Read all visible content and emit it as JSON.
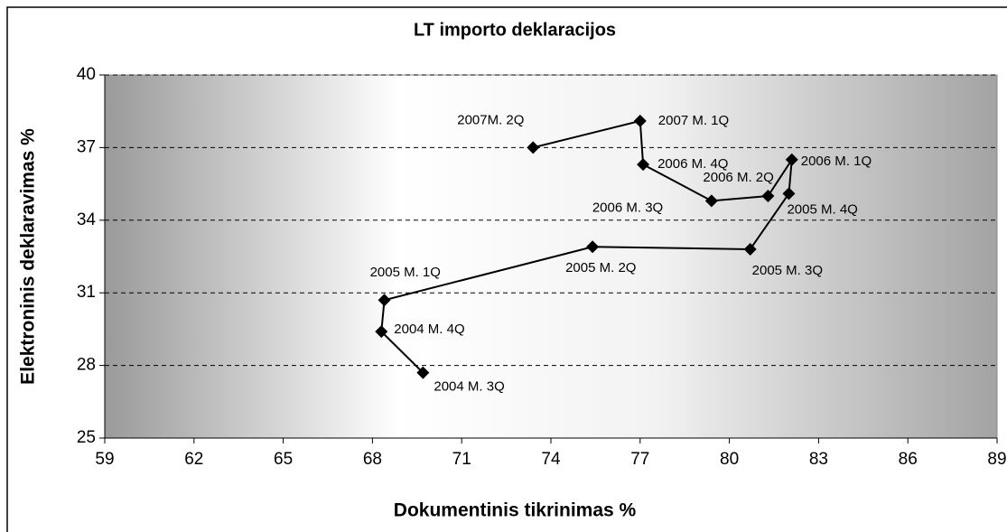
{
  "chart_data": {
    "type": "scatter",
    "connected": true,
    "title": "LT importo deklaracijos",
    "x_label": "Dokumentinis tikrinimas %",
    "y_label": "Elektroninis deklaravimas %",
    "labels": [
      "2004 M. 3Q",
      "2004 M. 4Q",
      "2005 M. 1Q",
      "2005  M. 2Q",
      "2005 M. 3Q",
      "2005 M. 4Q",
      "2006 M. 1Q",
      "2006 M. 2Q",
      "2006 M. 3Q",
      "2006 M. 4Q",
      "2007 M. 1Q",
      "2007M. 2Q"
    ],
    "x": [
      69.7,
      68.3,
      68.4,
      75.4,
      80.7,
      82.0,
      82.1,
      81.3,
      79.4,
      77.1,
      77.0,
      73.4
    ],
    "y": [
      27.7,
      29.4,
      30.7,
      32.9,
      32.8,
      35.1,
      36.5,
      35.0,
      34.8,
      36.3,
      38.1,
      37.0
    ],
    "color": "#000000",
    "xlim": [
      59,
      89
    ],
    "xticks": [
      59,
      62,
      65,
      68,
      71,
      74,
      77,
      80,
      83,
      86,
      89
    ],
    "ylim": [
      25,
      40
    ],
    "yticks": [
      25,
      28,
      31,
      34,
      37,
      40
    ],
    "grid": true
  }
}
